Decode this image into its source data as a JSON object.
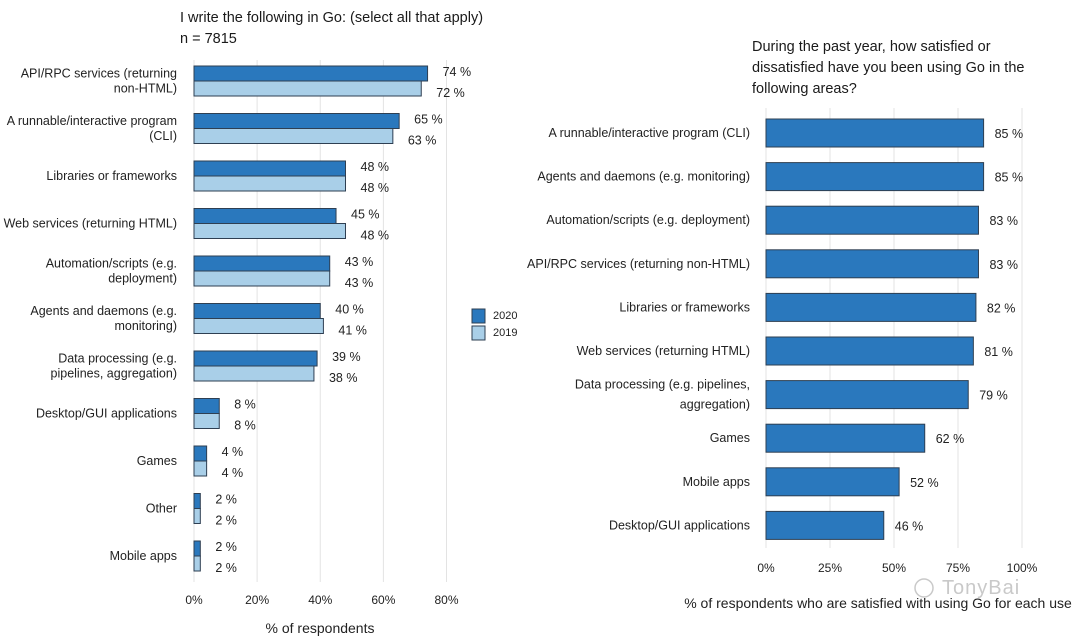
{
  "chart_data": [
    {
      "type": "bar",
      "orientation": "horizontal",
      "title": "I write the following in Go: (select all that apply)",
      "subtitle": "n = 7815",
      "xlabel": "% of respondents",
      "xlim": [
        0,
        85
      ],
      "xticks": [
        "0%",
        "20%",
        "40%",
        "60%",
        "80%"
      ],
      "tick_values": [
        0,
        20,
        40,
        60,
        80
      ],
      "grid": true,
      "legend": "right",
      "categories": [
        [
          "API/RPC services (returning",
          "non-HTML)"
        ],
        [
          "A runnable/interactive program",
          "(CLI)"
        ],
        [
          "Libraries or frameworks"
        ],
        [
          "Web services (returning HTML)"
        ],
        [
          "Automation/scripts (e.g.",
          "deployment)"
        ],
        [
          "Agents and daemons (e.g.",
          "monitoring)"
        ],
        [
          "Data processing (e.g.",
          "pipelines, aggregation)"
        ],
        [
          "Desktop/GUI applications"
        ],
        [
          "Games"
        ],
        [
          "Other"
        ],
        [
          "Mobile apps"
        ]
      ],
      "series": [
        {
          "name": "2020",
          "color": "#2a78bd",
          "values": [
            74,
            65,
            48,
            45,
            43,
            40,
            39,
            8,
            4,
            2,
            2
          ]
        },
        {
          "name": "2019",
          "color": "#a9cfe8",
          "values": [
            72,
            63,
            48,
            48,
            43,
            41,
            38,
            8,
            4,
            2,
            2
          ]
        }
      ],
      "value_suffix": " %"
    },
    {
      "type": "bar",
      "orientation": "horizontal",
      "title": [
        "During the past year, how satisfied or",
        "dissatisfied have you been using Go in the",
        "following areas?"
      ],
      "xlabel": "% of respondents who are satisfied with using Go for each use",
      "xlim": [
        0,
        100
      ],
      "xticks": [
        "0%",
        "25%",
        "50%",
        "75%",
        "100%"
      ],
      "tick_values": [
        0,
        25,
        50,
        75,
        100
      ],
      "grid": true,
      "categories": [
        [
          "A runnable/interactive program (CLI)"
        ],
        [
          "Agents and daemons (e.g. monitoring)"
        ],
        [
          "Automation/scripts (e.g. deployment)"
        ],
        [
          "API/RPC services (returning non-HTML)"
        ],
        [
          "Libraries or frameworks"
        ],
        [
          "Web services (returning HTML)"
        ],
        [
          "Data processing (e.g. pipelines,",
          "aggregation)"
        ],
        [
          "Games"
        ],
        [
          "Mobile apps"
        ],
        [
          "Desktop/GUI applications"
        ]
      ],
      "series": [
        {
          "color": "#2a78bd",
          "values": [
            85,
            85,
            83,
            83,
            82,
            81,
            79,
            62,
            52,
            46
          ]
        }
      ],
      "value_suffix": " %"
    }
  ],
  "watermark": "TonyBai"
}
